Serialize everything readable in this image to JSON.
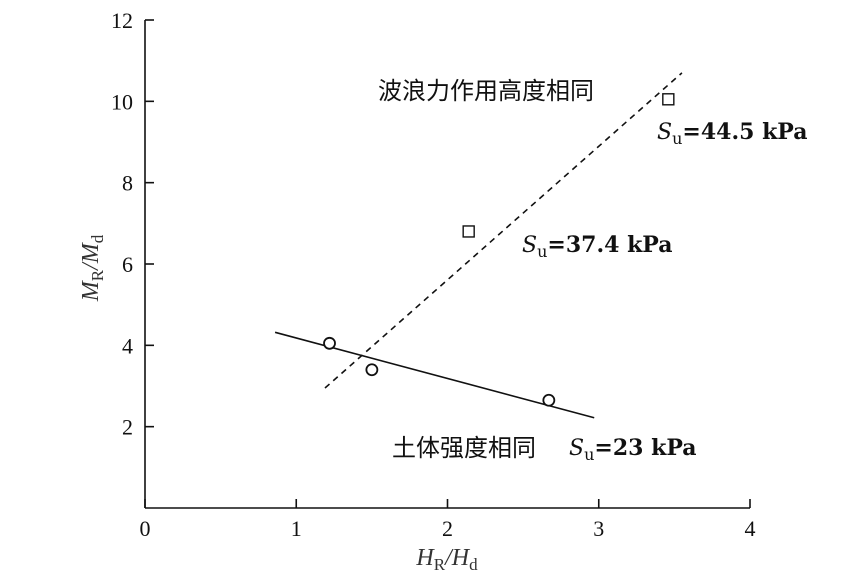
{
  "chart_data": {
    "type": "scatter",
    "xlabel": {
      "main": "H",
      "sub1": "R",
      "sep": "/H",
      "sub2": "d"
    },
    "ylabel": {
      "main": "M",
      "sub1": "R",
      "sep": "/M",
      "sub2": "d"
    },
    "xlim": [
      0,
      4
    ],
    "ylim": [
      0,
      12
    ],
    "xticks": [
      0,
      1,
      2,
      3,
      4
    ],
    "yticks": [
      2,
      4,
      6,
      8,
      10,
      12
    ],
    "grid": false,
    "series": [
      {
        "marker": "square",
        "points": [
          {
            "x": 2.14,
            "y": 6.8
          },
          {
            "x": 3.46,
            "y": 10.05
          }
        ]
      },
      {
        "marker": "circle",
        "points": [
          {
            "x": 1.22,
            "y": 4.05
          },
          {
            "x": 1.5,
            "y": 3.4
          },
          {
            "x": 2.67,
            "y": 2.65
          }
        ]
      }
    ],
    "trendlines": [
      {
        "style": "dashed",
        "from": {
          "x": 1.19,
          "y": 2.95
        },
        "to": {
          "x": 3.55,
          "y": 10.7
        }
      },
      {
        "style": "solid",
        "from": {
          "x": 0.86,
          "y": 4.32
        },
        "to": {
          "x": 2.97,
          "y": 2.22
        }
      }
    ],
    "annotations": {
      "wave_force_same": "波浪力作用高度相同",
      "soil_strength_same": "土体强度相同",
      "su_445": {
        "sym": "S",
        "sub": "u",
        "value": "=44.5 kPa"
      },
      "su_374": {
        "sym": "S",
        "sub": "u",
        "value": "=37.4 kPa"
      },
      "su_23": {
        "sym": "S",
        "sub": "u",
        "value": "=23 kPa"
      }
    }
  }
}
